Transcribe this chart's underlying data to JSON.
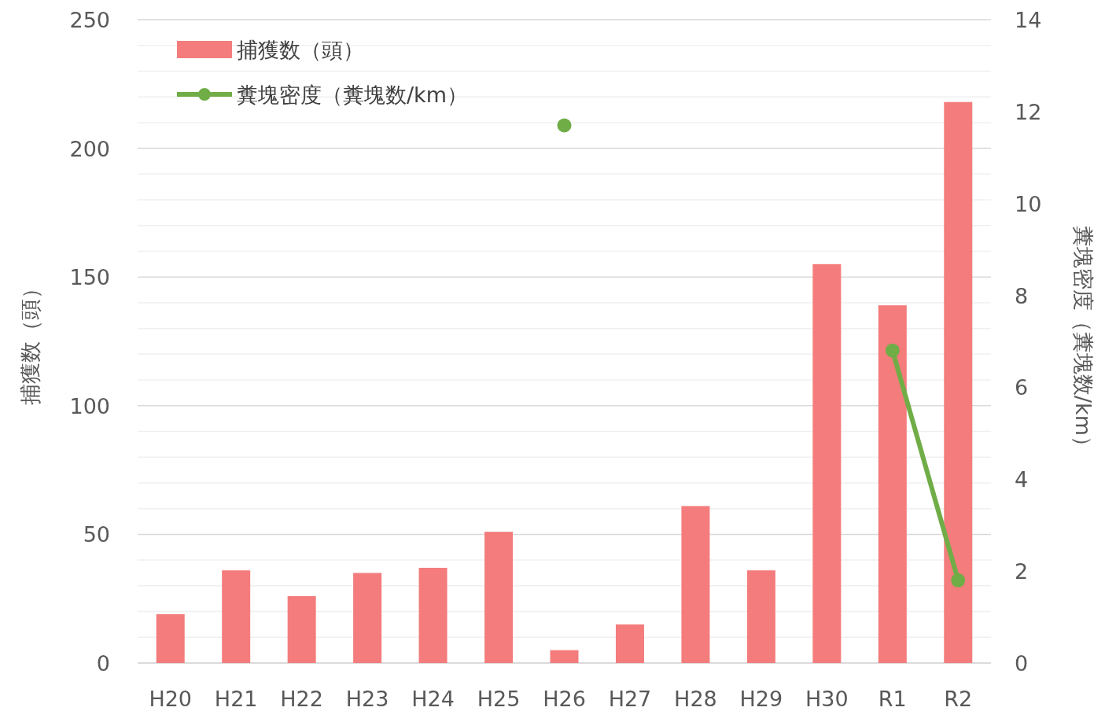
{
  "chart_data": {
    "type": "bar",
    "categories": [
      "H20",
      "H21",
      "H22",
      "H23",
      "H24",
      "H25",
      "H26",
      "H27",
      "H28",
      "H29",
      "H30",
      "R1",
      "R2"
    ],
    "series": [
      {
        "name": "捕獲数（頭）",
        "color": "#f47c7c",
        "values": [
          19,
          36,
          26,
          35,
          37,
          51,
          5,
          15,
          61,
          36,
          155,
          139,
          218
        ]
      },
      {
        "name": "糞塊密度（糞塊数/km）",
        "type": "line",
        "axis": "y2",
        "color": "#70ad47",
        "marker": "circle",
        "line_style": "solid",
        "values": [
          null,
          null,
          null,
          null,
          null,
          null,
          11.7,
          null,
          null,
          null,
          null,
          6.8,
          1.8
        ]
      }
    ],
    "ylabel": "捕獲数（頭）",
    "y2label": "糞塊密度（糞塊数/km）",
    "ylim": [
      0,
      250
    ],
    "yticks": [
      0,
      {
        "value": 10,
        "label": null
      },
      {
        "value": 20,
        "label": null
      },
      {
        "value": 30,
        "label": null
      },
      {
        "value": 40,
        "label": null
      },
      50,
      {
        "value": 60,
        "label": null
      },
      {
        "value": 70,
        "label": null
      },
      {
        "value": 80,
        "label": null
      },
      {
        "value": 90,
        "label": null
      },
      100,
      {
        "value": 110,
        "label": null
      },
      {
        "value": 120,
        "label": null
      },
      {
        "value": 130,
        "label": null
      },
      {
        "value": 140,
        "label": null
      },
      150,
      {
        "value": 160,
        "label": null
      },
      {
        "value": 170,
        "label": null
      },
      {
        "value": 180,
        "label": null
      },
      {
        "value": 190,
        "label": null
      },
      200,
      {
        "value": 210,
        "label": null
      },
      {
        "value": 220,
        "label": null
      },
      {
        "value": 230,
        "label": null
      },
      {
        "value": 240,
        "label": null
      },
      250
    ],
    "y2lim": [
      0,
      14
    ],
    "y2ticks": [
      0,
      2,
      4,
      6,
      8,
      10,
      12,
      14
    ],
    "grid": "y",
    "legend": "top left"
  }
}
